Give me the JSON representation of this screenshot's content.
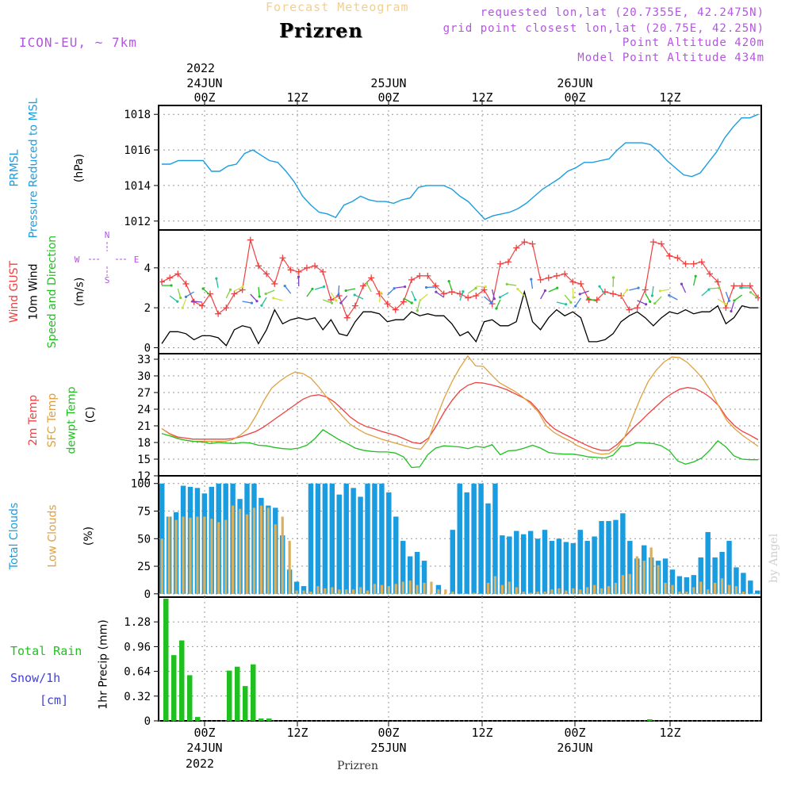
{
  "header": {
    "forecast_label": "Forecast Meteogram",
    "station": "Prizren",
    "model": "ICON-EU, ~ 7km",
    "requested": "requested lon,lat (20.7355E, 42.2475N)",
    "grid_point": "grid point closest lon,lat (20.75E, 42.25N)",
    "point_altitude": "Point Altitude 420m",
    "model_altitude": "Model Point Altitude 434m"
  },
  "footer": {
    "station": "Prizren"
  },
  "watermark": "by Angel",
  "time_axis": {
    "top_year": "2022",
    "top_dates": [
      "24JUN",
      "25JUN",
      "26JUN"
    ],
    "labels": [
      "00Z",
      "12Z",
      "00Z",
      "12Z",
      "00Z",
      "12Z"
    ],
    "bottom_dates": [
      "24JUN",
      "25JUN",
      "26JUN"
    ],
    "bottom_year": "2022"
  },
  "colors": {
    "pressure": "#1a9de0",
    "gust": "#f04040",
    "wind": "#000000",
    "temp2m": "#f04040",
    "sfc": "#e0a040",
    "dewpt": "#20c020",
    "total_clouds": "#1a9de0",
    "low_clouds": "#d8b060",
    "rain": "#20c020",
    "snow": "#4040e0",
    "compass": "#b455e0"
  },
  "chart_data": [
    {
      "type": "line",
      "title": "PRMSL Pressure Reduced to MSL",
      "ylabel": "(hPa)",
      "label_lines": [
        "PRMSL",
        "Pressure Reduced to MSL"
      ],
      "unit": "(hPa)",
      "ylim": [
        1011.5,
        1018.5
      ],
      "yticks": [
        "1012",
        "1014",
        "1016",
        "1018"
      ],
      "x_hours": [
        -5,
        -4,
        -3,
        -2,
        -1,
        0,
        1,
        2,
        3,
        4,
        5,
        6,
        7,
        8,
        9,
        10,
        11,
        12,
        13,
        14,
        15,
        16,
        17,
        18,
        19,
        20,
        21,
        22,
        23,
        24,
        25,
        26,
        27,
        28,
        29,
        30,
        31,
        32,
        33,
        34,
        35,
        36,
        37,
        38,
        39,
        40,
        41,
        42,
        43,
        44,
        45,
        46,
        47,
        48,
        49,
        50,
        51,
        52,
        53,
        54,
        55,
        56,
        57,
        58,
        59,
        60,
        61,
        62,
        63,
        64,
        65,
        66,
        67,
        68,
        69,
        70,
        71,
        72,
        73,
        74,
        75,
        76,
        77,
        78,
        79,
        80,
        81,
        82,
        83,
        84,
        85,
        86,
        87,
        88,
        89,
        90,
        91,
        92,
        93,
        94,
        95,
        96,
        97,
        98,
        99,
        100,
        101,
        102,
        103,
        104,
        105,
        106,
        107,
        108,
        109,
        110,
        111,
        112,
        113,
        114,
        115,
        116,
        117,
        118,
        119,
        120,
        121,
        122,
        123,
        124,
        125,
        126,
        127,
        128,
        129,
        130,
        131,
        132,
        133,
        134,
        135,
        136,
        137,
        138,
        139,
        140,
        141,
        142,
        143,
        144,
        145,
        146,
        147,
        148,
        149,
        150,
        151,
        152,
        153,
        154,
        155,
        156,
        157,
        158,
        159,
        160,
        161,
        162,
        163,
        164,
        165,
        166,
        167,
        168,
        169,
        170,
        171,
        172,
        173,
        174,
        175,
        176,
        177,
        178,
        179,
        180,
        181,
        182,
        183,
        184,
        185,
        186,
        187,
        188,
        189,
        190,
        191,
        192,
        193,
        194,
        195,
        196,
        197,
        198,
        199,
        200,
        201,
        202,
        203,
        204,
        205,
        206,
        207,
        208,
        209,
        210,
        211,
        212,
        213,
        214,
        215,
        216,
        217,
        218,
        219,
        220,
        221,
        222,
        223,
        224,
        225,
        226,
        227,
        228,
        229,
        230,
        231,
        232,
        233,
        234,
        235,
        236,
        237,
        238,
        239,
        240
      ],
      "series": [
        {
          "values": [
            1015.2,
            1015.2,
            1015.4,
            1015.4,
            1015.4,
            1015.4,
            1014.8,
            1014.8,
            1015.1,
            1015.2,
            1015.8,
            1016.0,
            1015.7,
            1015.4,
            1015.3,
            1014.8,
            1014.2,
            1013.4,
            1012.9,
            1012.5,
            1012.4,
            1012.2,
            1012.9,
            1013.1,
            1013.4,
            1013.2,
            1013.1,
            1013.1,
            1013.0,
            1013.2,
            1013.3,
            1013.9,
            1014.0,
            1014.0,
            1014.0,
            1013.8,
            1013.4,
            1013.1,
            1012.6,
            1012.1,
            1012.3,
            1012.4,
            1012.5,
            1012.7,
            1013.0,
            1013.4,
            1013.8,
            1014.1,
            1014.4,
            1014.8,
            1015.0,
            1015.3,
            1015.3,
            1015.4,
            1015.5,
            1016.0,
            1016.4,
            1016.4,
            1016.4,
            1016.3,
            1015.9,
            1015.4,
            1015.0,
            1014.6,
            1014.5,
            1014.7,
            1015.3,
            1015.9,
            1016.7,
            1017.3,
            1017.8,
            1017.8,
            1018.0
          ]
        }
      ]
    },
    {
      "type": "line",
      "title": "Wind GUST 10m Wind Speed and Direction",
      "ylabel": "(m/s)",
      "label_lines": [
        "Wind GUST",
        "10m Wind",
        "Speed and Direction"
      ],
      "unit": "(m/s)",
      "compass": {
        "n": "N",
        "s": "S",
        "w": "W",
        "e": "E"
      },
      "ylim": [
        -0.3,
        5.9
      ],
      "yticks": [
        "0",
        "2",
        "4"
      ],
      "series": [
        {
          "name": "Wind GUST",
          "values": [
            3.3,
            3.5,
            3.7,
            3.2,
            2.3,
            2.1,
            2.7,
            1.7,
            2.0,
            2.7,
            2.9,
            5.4,
            4.1,
            3.7,
            3.2,
            4.5,
            3.9,
            3.8,
            4.0,
            4.1,
            3.8,
            2.4,
            2.6,
            1.5,
            2.1,
            3.1,
            3.5,
            2.7,
            2.2,
            1.9,
            2.3,
            3.4,
            3.6,
            3.6,
            3.1,
            2.7,
            2.8,
            2.7,
            2.5,
            2.6,
            2.9,
            2.2,
            4.2,
            4.3,
            5.0,
            5.3,
            5.2,
            3.4,
            3.5,
            3.6,
            3.7,
            3.3,
            3.2,
            2.4,
            2.4,
            2.8,
            2.7,
            2.6,
            1.9,
            2.0,
            2.9,
            5.3,
            5.2,
            4.6,
            4.5,
            4.2,
            4.2,
            4.3,
            3.7,
            3.3,
            2.0,
            3.1,
            3.1,
            3.1,
            2.5
          ]
        },
        {
          "name": "10m Wind",
          "values": [
            0.2,
            0.8,
            0.8,
            0.7,
            0.4,
            0.6,
            0.6,
            0.5,
            0.1,
            0.9,
            1.1,
            1.0,
            0.2,
            0.9,
            1.9,
            1.2,
            1.4,
            1.5,
            1.4,
            1.5,
            0.9,
            1.4,
            0.7,
            0.6,
            1.3,
            1.8,
            1.8,
            1.7,
            1.3,
            1.4,
            1.4,
            1.8,
            1.6,
            1.7,
            1.6,
            1.6,
            1.2,
            0.6,
            0.8,
            0.3,
            1.3,
            1.4,
            1.1,
            1.1,
            1.3,
            2.8,
            1.3,
            0.9,
            1.5,
            1.9,
            1.6,
            1.8,
            1.5,
            0.3,
            0.3,
            0.4,
            0.7,
            1.3,
            1.6,
            1.8,
            1.5,
            1.1,
            1.5,
            1.8,
            1.7,
            1.9,
            1.7,
            1.8,
            1.8,
            2.1,
            1.2,
            1.5,
            2.1,
            2.0,
            2.0
          ]
        }
      ]
    },
    {
      "type": "line",
      "title": "2m Temp SFC Temp dewpt Temp",
      "ylabel": "(C)",
      "label_lines": [
        "2m Temp",
        "SFC Temp",
        "dewpt Temp"
      ],
      "unit": "(C)",
      "ylim": [
        12,
        34
      ],
      "yticks": [
        "12",
        "15",
        "18",
        "21",
        "24",
        "27",
        "30",
        "33"
      ],
      "series": [
        {
          "name": "2m Temp",
          "values": [
            20.5,
            19.6,
            19.0,
            18.8,
            18.6,
            18.6,
            18.6,
            18.6,
            18.6,
            18.7,
            19.0,
            19.5,
            20.0,
            20.8,
            21.8,
            22.8,
            23.8,
            24.8,
            25.8,
            26.4,
            26.6,
            26.2,
            25.3,
            24.0,
            22.6,
            21.6,
            20.9,
            20.5,
            20.0,
            19.6,
            19.2,
            18.6,
            18.0,
            17.8,
            18.8,
            21.0,
            23.5,
            25.6,
            27.3,
            28.3,
            28.8,
            28.7,
            28.4,
            28.0,
            27.5,
            26.8,
            26.1,
            25.3,
            23.8,
            21.8,
            20.5,
            19.7,
            19.0,
            18.3,
            17.6,
            17.0,
            16.6,
            16.6,
            17.6,
            19.0,
            20.5,
            21.8,
            23.2,
            24.5,
            25.8,
            26.8,
            27.6,
            27.9,
            27.7,
            27.0,
            26.0,
            24.6,
            22.5,
            21.0,
            20.0,
            19.3,
            18.5
          ]
        },
        {
          "name": "SFC Temp",
          "values": [
            20.5,
            19.5,
            18.8,
            18.4,
            18.2,
            18.2,
            18.2,
            18.2,
            18.2,
            18.5,
            19.3,
            20.5,
            22.8,
            25.5,
            27.8,
            29.0,
            30.0,
            30.7,
            30.4,
            29.6,
            28.0,
            26.2,
            24.4,
            22.8,
            21.3,
            20.4,
            19.6,
            19.1,
            18.6,
            18.2,
            17.8,
            17.4,
            17.0,
            16.8,
            18.5,
            22.5,
            26.0,
            29.0,
            31.5,
            33.6,
            31.8,
            31.7,
            30.2,
            28.8,
            28.0,
            27.2,
            26.2,
            25.0,
            23.5,
            21.0,
            19.8,
            19.0,
            18.3,
            17.4,
            16.8,
            16.2,
            15.9,
            16.0,
            17.0,
            19.0,
            22.5,
            26.0,
            29.0,
            31.0,
            32.5,
            33.4,
            33.3,
            32.4,
            31.0,
            29.4,
            27.2,
            24.5,
            22.0,
            20.5,
            19.3,
            18.3,
            17.3
          ]
        },
        {
          "name": "dewpt Temp",
          "values": [
            19.6,
            19.2,
            18.7,
            18.4,
            18.2,
            18.1,
            17.8,
            18.0,
            17.9,
            17.8,
            18.0,
            17.9,
            17.5,
            17.4,
            17.1,
            16.9,
            16.8,
            17.0,
            17.5,
            18.7,
            20.3,
            19.4,
            18.5,
            17.8,
            17.0,
            16.6,
            16.4,
            16.3,
            16.3,
            16.1,
            15.4,
            13.5,
            13.6,
            15.8,
            17.0,
            17.4,
            17.3,
            17.2,
            16.9,
            17.3,
            17.1,
            17.6,
            15.8,
            16.5,
            16.6,
            17.0,
            17.5,
            17.0,
            16.2,
            16.0,
            15.9,
            15.9,
            15.7,
            15.4,
            15.3,
            15.2,
            15.7,
            17.3,
            17.4,
            18.0,
            17.9,
            17.8,
            17.4,
            16.5,
            14.7,
            14.1,
            14.5,
            15.2,
            16.6,
            18.3,
            17.2,
            15.6,
            15.0,
            14.9,
            14.9
          ]
        }
      ]
    },
    {
      "type": "bar",
      "title": "Total Clouds Low Clouds",
      "ylabel": "(%)",
      "label_lines": [
        "Total Clouds",
        "Low Clouds"
      ],
      "unit": "(%)",
      "ylim": [
        0,
        100
      ],
      "yticks": [
        "0",
        "25",
        "50",
        "75",
        "100"
      ],
      "series": [
        {
          "name": "Total Clouds",
          "values": [
            100,
            70,
            74,
            98,
            97,
            96,
            91,
            97,
            100,
            100,
            100,
            86,
            100,
            100,
            87,
            80,
            78,
            53,
            22,
            11,
            7,
            100,
            100,
            100,
            100,
            90,
            100,
            96,
            88,
            100,
            100,
            100,
            92,
            70,
            48,
            34,
            38,
            30,
            0,
            8,
            0,
            58,
            100,
            92,
            100,
            100,
            82,
            100,
            53,
            52,
            57,
            54,
            57,
            50,
            58,
            48,
            50,
            47,
            46,
            58,
            48,
            52,
            66,
            66,
            67,
            73,
            48,
            32,
            44,
            33,
            30,
            32,
            22,
            16,
            15,
            17,
            33,
            56,
            33,
            38,
            48,
            24,
            19,
            12,
            3
          ]
        },
        {
          "name": "Low Clouds",
          "values": [
            50,
            70,
            67,
            70,
            69,
            70,
            70,
            68,
            65,
            67,
            80,
            77,
            72,
            78,
            80,
            78,
            63,
            70,
            48,
            3,
            3,
            2,
            7,
            5,
            6,
            4,
            4,
            4,
            6,
            3,
            9,
            8,
            7,
            9,
            11,
            12,
            8,
            10,
            11,
            4,
            4,
            2,
            0,
            0,
            1,
            0,
            10,
            16,
            8,
            11,
            6,
            2,
            1,
            2,
            2,
            4,
            5,
            3,
            5,
            4,
            6,
            8,
            5,
            7,
            10,
            17,
            18,
            34,
            30,
            42,
            26,
            10,
            8,
            2,
            2,
            6,
            11,
            4,
            10,
            14,
            8,
            7,
            2,
            0,
            0,
            0,
            0
          ]
        }
      ]
    },
    {
      "type": "bar",
      "title": "Total Rain Snow/1h [cm]",
      "ylabel": "1hr Precip (mm)",
      "label_lines": [
        "Total  Rain",
        "Snow/1h",
        "[cm]"
      ],
      "unit": "1hr Precip (mm)",
      "ylim": [
        0,
        1.6
      ],
      "yticks": [
        "0",
        "0.32",
        "0.64",
        "0.96",
        "1.28"
      ],
      "series": [
        {
          "name": "Total Rain",
          "values": [
            1.58,
            0.85,
            1.04,
            0.59,
            0.05,
            0,
            0,
            0,
            0.65,
            0.7,
            0.45,
            0.73,
            0.03,
            0.03,
            0,
            0,
            0,
            0,
            0,
            0,
            0,
            0,
            0,
            0,
            0,
            0,
            0,
            0,
            0,
            0,
            0,
            0,
            0,
            0,
            0,
            0,
            0,
            0,
            0,
            0,
            0,
            0,
            0,
            0,
            0,
            0,
            0,
            0,
            0,
            0,
            0,
            0,
            0,
            0,
            0,
            0,
            0,
            0,
            0,
            0,
            0,
            0.02,
            0,
            0,
            0,
            0,
            0,
            0,
            0,
            0,
            0,
            0,
            0,
            0,
            0
          ]
        }
      ]
    }
  ]
}
